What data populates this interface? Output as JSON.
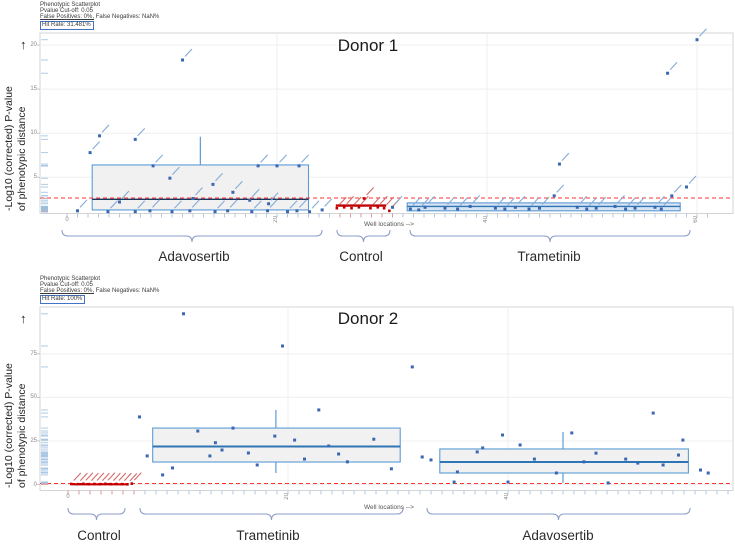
{
  "y_axis": {
    "line1": "-Log10 (corrected) P-value",
    "line2": "of phenotypic distance",
    "arrow": "↑"
  },
  "headers": [
    {
      "tool": "Phenotypic Scatterplot",
      "cutoff": "Pvalue Cut-off: 0.05",
      "false_positives": "False Positives: 0%,",
      "false_negatives": " False Negatives: NaN%",
      "hit_rate": "Hit Rate: 31.481%"
    },
    {
      "tool": "Phenotypic Scatterplot",
      "cutoff": "Pvalue Cut-off: 0.05",
      "false_positives": "False Positives: 0%,",
      "false_negatives": " False Negatives: NaN%",
      "hit_rate": "Hit Rate: 100%"
    }
  ],
  "colors": {
    "point_blue": "#3a68b0",
    "slash_blue": "#85abd6",
    "box_border": "#5b9bd5",
    "box_fill_gray": "#f1f1f1",
    "box_fill_blue": "#d9e4f2",
    "median_navy": "#17375e",
    "median_blue": "#2e75b6",
    "control_red": "#c00000",
    "slash_red": "#d46a6a",
    "threshold_red": "#ff3232",
    "brace": "#8a9cc8",
    "grid": "#efefef",
    "axis": "#d4d4d4",
    "tick_blue": "#a7c4e2",
    "tick_red": "#dc8f8f",
    "rug_blue": "#9bbede",
    "rug_red": "#dba3a3"
  },
  "chart_data": [
    {
      "type": "scatter+box",
      "title": "Donor 1",
      "xlabel": "Well locations -->",
      "ylabel": "-Log10 (corrected) P-value of phenotypic distance",
      "threshold_pvalue": 0.05,
      "x_ticks": [
        0,
        20,
        40,
        60
      ],
      "y_ticks": [
        5,
        10,
        15,
        20
      ],
      "xlim": [
        0,
        61
      ],
      "ylim": [
        0,
        21
      ],
      "legend": "none",
      "grid": "light",
      "groups": [
        {
          "name": "Adavosertib",
          "color": "blue",
          "box": {
            "x1": 2.4,
            "x2": 23.0,
            "q1": 1.3,
            "median": 2.5,
            "q3": 6.4,
            "whisker_x": 12.7,
            "whisker_high": 9.6
          },
          "points": [
            [
              11.0,
              18.3
            ],
            [
              3.1,
              9.7
            ],
            [
              6.5,
              9.3
            ],
            [
              2.2,
              7.8
            ],
            [
              8.2,
              6.3
            ],
            [
              18.2,
              6.3
            ],
            [
              20.0,
              6.3
            ],
            [
              22.1,
              6.3
            ],
            [
              9.8,
              4.9
            ],
            [
              13.9,
              4.2
            ],
            [
              15.8,
              3.3
            ],
            [
              17.4,
              2.4
            ],
            [
              19.2,
              2.0
            ],
            [
              12.0,
              2.6
            ],
            [
              5.0,
              2.2
            ],
            [
              1.0,
              1.2
            ],
            [
              3.9,
              1.1
            ],
            [
              6.5,
              1.1
            ],
            [
              7.9,
              1.2
            ],
            [
              10.0,
              1.1
            ],
            [
              11.7,
              1.2
            ],
            [
              14.1,
              1.1
            ],
            [
              15.3,
              1.2
            ],
            [
              17.6,
              1.1
            ],
            [
              19.1,
              1.2
            ],
            [
              21.0,
              1.1
            ],
            [
              21.9,
              1.2
            ],
            [
              23.1,
              1.1
            ],
            [
              24.3,
              1.3
            ]
          ]
        },
        {
          "name": "Control",
          "color": "red",
          "line": {
            "x1": 25.6,
            "x2": 30.4,
            "v": 1.8
          },
          "points": [
            [
              25.7,
              1.5
            ],
            [
              26.4,
              1.6
            ],
            [
              27.1,
              1.5
            ],
            [
              27.8,
              1.6
            ],
            [
              28.3,
              2.6
            ],
            [
              28.9,
              1.5
            ],
            [
              29.6,
              1.6
            ],
            [
              30.2,
              1.5
            ],
            [
              30.7,
              1.2
            ]
          ]
        },
        {
          "name": "Trametinib",
          "color": "blue",
          "box": {
            "x1": 32.4,
            "x2": 58.4,
            "q1": 1.2,
            "median": 1.7,
            "q3": 2.1
          },
          "points": [
            [
              31.0,
              1.6
            ],
            [
              32.7,
              1.4
            ],
            [
              34.1,
              1.6
            ],
            [
              36.0,
              1.5
            ],
            [
              38.4,
              1.7
            ],
            [
              40.8,
              1.5
            ],
            [
              42.7,
              1.6
            ],
            [
              45.0,
              1.5
            ],
            [
              46.4,
              2.9
            ],
            [
              46.9,
              6.5
            ],
            [
              48.6,
              1.6
            ],
            [
              50.4,
              1.5
            ],
            [
              52.2,
              1.7
            ],
            [
              54.1,
              1.5
            ],
            [
              56.0,
              1.6
            ],
            [
              57.2,
              16.8
            ],
            [
              57.6,
              2.9
            ],
            [
              59.0,
              3.9
            ],
            [
              60.0,
              20.6
            ],
            [
              33.5,
              1.3
            ],
            [
              37.2,
              1.4
            ],
            [
              41.7,
              1.4
            ],
            [
              44.0,
              1.4
            ],
            [
              49.5,
              1.4
            ],
            [
              53.2,
              1.4
            ],
            [
              56.6,
              1.4
            ]
          ]
        }
      ]
    },
    {
      "type": "scatter+box",
      "title": "Donor 2",
      "xlabel": "Well locations -->",
      "ylabel": "-Log10 (corrected) P-value of phenotypic distance",
      "threshold_pvalue": 0.05,
      "x_ticks": [
        0,
        20,
        40
      ],
      "y_ticks": [
        0,
        25,
        50,
        75
      ],
      "xlim": [
        0,
        60
      ],
      "ylim": [
        0,
        100
      ],
      "legend": "none",
      "grid": "light",
      "groups": [
        {
          "name": "Control",
          "color": "red",
          "line": {
            "x1": 0.4,
            "x2": 5.5,
            "v": 0.2
          },
          "points": [
            [
              0.3,
              0.3
            ],
            [
              0.9,
              0.2
            ],
            [
              1.4,
              0.4
            ],
            [
              1.9,
              0.2
            ],
            [
              2.4,
              0.3
            ],
            [
              2.9,
              0.2
            ],
            [
              3.4,
              0.4
            ],
            [
              3.9,
              0.2
            ],
            [
              4.4,
              0.3
            ],
            [
              4.9,
              0.2
            ],
            [
              5.4,
              0.1
            ],
            [
              5.8,
              0.5
            ]
          ]
        },
        {
          "name": "Trametinib",
          "color": "blue",
          "box": {
            "x1": 7.7,
            "x2": 30.2,
            "q1": 12.9,
            "median": 21.8,
            "q3": 32.4,
            "whisker_x": 18.9,
            "whisker_high": 42.8,
            "whisker_low": 6.6
          },
          "points": [
            [
              10.5,
              98.0
            ],
            [
              19.5,
              79.5
            ],
            [
              6.5,
              38.8
            ],
            [
              22.8,
              42.8
            ],
            [
              11.8,
              30.7
            ],
            [
              15.0,
              32.4
            ],
            [
              18.8,
              27.8
            ],
            [
              20.6,
              25.5
            ],
            [
              14.0,
              19.8
            ],
            [
              12.9,
              16.4
            ],
            [
              16.4,
              18.1
            ],
            [
              7.2,
              16.4
            ],
            [
              8.6,
              5.5
            ],
            [
              9.5,
              9.5
            ],
            [
              17.2,
              11.2
            ],
            [
              21.5,
              14.6
            ],
            [
              23.7,
              22.1
            ],
            [
              25.4,
              13.0
            ],
            [
              27.8,
              26.0
            ],
            [
              29.4,
              9.0
            ],
            [
              13.4,
              24.0
            ],
            [
              24.6,
              17.5
            ]
          ]
        },
        {
          "name": "Adavosertib",
          "color": "blue",
          "box": {
            "x1": 33.8,
            "x2": 56.4,
            "q1": 6.6,
            "median": 12.9,
            "q3": 20.4,
            "whisker_x": 45.0,
            "whisker_high": 30.1,
            "whisker_low": 0.9
          },
          "points": [
            [
              31.3,
              67.5
            ],
            [
              53.2,
              41.0
            ],
            [
              45.8,
              29.6
            ],
            [
              39.5,
              28.4
            ],
            [
              37.2,
              18.7
            ],
            [
              37.7,
              21.0
            ],
            [
              41.1,
              22.7
            ],
            [
              42.4,
              14.6
            ],
            [
              50.7,
              14.6
            ],
            [
              51.8,
              12.3
            ],
            [
              54.1,
              11.2
            ],
            [
              55.5,
              16.9
            ],
            [
              55.9,
              25.5
            ],
            [
              57.5,
              8.3
            ],
            [
              58.2,
              6.6
            ],
            [
              35.4,
              7.2
            ],
            [
              44.4,
              6.6
            ],
            [
              49.1,
              0.9
            ],
            [
              40.0,
              1.4
            ],
            [
              35.1,
              1.4
            ],
            [
              32.2,
              15.8
            ],
            [
              33.0,
              14.1
            ],
            [
              46.9,
              13.0
            ],
            [
              48.0,
              18.0
            ]
          ]
        }
      ]
    }
  ]
}
